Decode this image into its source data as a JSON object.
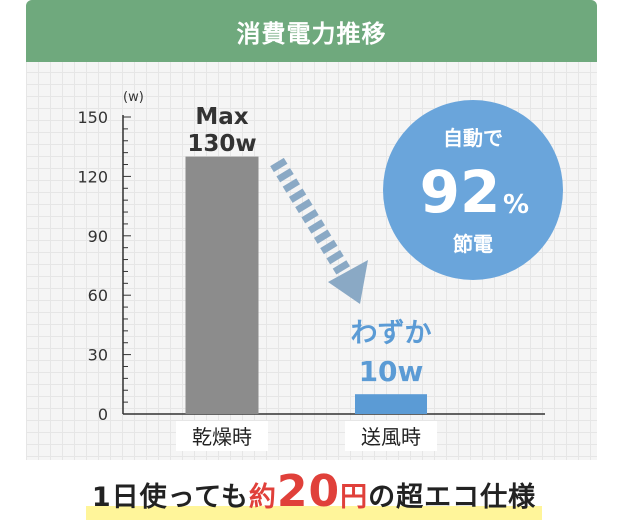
{
  "header": {
    "title": "消費電力推移"
  },
  "chart_data": {
    "type": "bar",
    "title": "消費電力推移",
    "ylabel": "(w)",
    "ylim": [
      0,
      150
    ],
    "yticks": [
      0,
      30,
      60,
      90,
      120,
      150
    ],
    "categories": [
      "乾燥時",
      "送風時"
    ],
    "values": [
      130,
      10
    ],
    "bar_labels": [
      [
        "Max",
        "130w"
      ],
      [
        "わずか",
        "10w"
      ]
    ],
    "colors": {
      "bar_dry": "#8c8c8c",
      "bar_fan": "#5b9bd5",
      "arrow": "#8aa9c5",
      "badge": "#6aa5db"
    },
    "grid": true
  },
  "badge": {
    "line1": "自動で",
    "number": "92",
    "percent": "%",
    "line2": "節電"
  },
  "footer": {
    "prefix": "1日使っても",
    "yaku": "約",
    "amount": "20",
    "yen": "円",
    "suffix": "の超エコ仕様",
    "highlight_color": "#fff59a"
  }
}
